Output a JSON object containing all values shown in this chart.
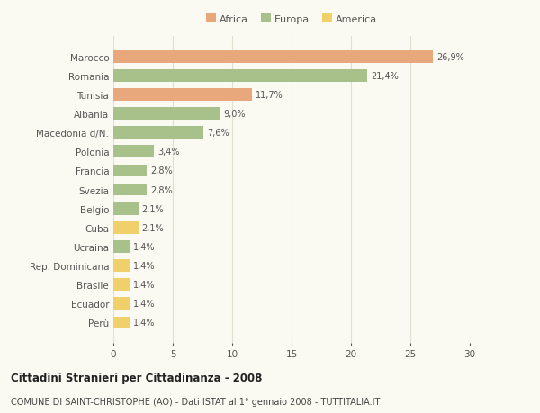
{
  "countries": [
    "Marocco",
    "Romania",
    "Tunisia",
    "Albania",
    "Macedonia d/N.",
    "Polonia",
    "Francia",
    "Svezia",
    "Belgio",
    "Cuba",
    "Ucraina",
    "Rep. Dominicana",
    "Brasile",
    "Ecuador",
    "Perù"
  ],
  "values": [
    26.9,
    21.4,
    11.7,
    9.0,
    7.6,
    3.4,
    2.8,
    2.8,
    2.1,
    2.1,
    1.4,
    1.4,
    1.4,
    1.4,
    1.4
  ],
  "labels": [
    "26,9%",
    "21,4%",
    "11,7%",
    "9,0%",
    "7,6%",
    "3,4%",
    "2,8%",
    "2,8%",
    "2,1%",
    "2,1%",
    "1,4%",
    "1,4%",
    "1,4%",
    "1,4%",
    "1,4%"
  ],
  "continents": [
    "Africa",
    "Europa",
    "Africa",
    "Europa",
    "Europa",
    "Europa",
    "Europa",
    "Europa",
    "Europa",
    "America",
    "Europa",
    "America",
    "America",
    "America",
    "America"
  ],
  "colors": {
    "Africa": "#E8A87C",
    "Europa": "#A8C08A",
    "America": "#F0D06A"
  },
  "xlim": [
    0,
    30
  ],
  "xticks": [
    0,
    5,
    10,
    15,
    20,
    25,
    30
  ],
  "title": "Cittadini Stranieri per Cittadinanza - 2008",
  "subtitle": "COMUNE DI SAINT-CHRISTOPHE (AO) - Dati ISTAT al 1° gennaio 2008 - TUTTITALIA.IT",
  "background_color": "#FAFAF2",
  "grid_color": "#E0E0D0",
  "legend_order": [
    "Africa",
    "Europa",
    "America"
  ]
}
